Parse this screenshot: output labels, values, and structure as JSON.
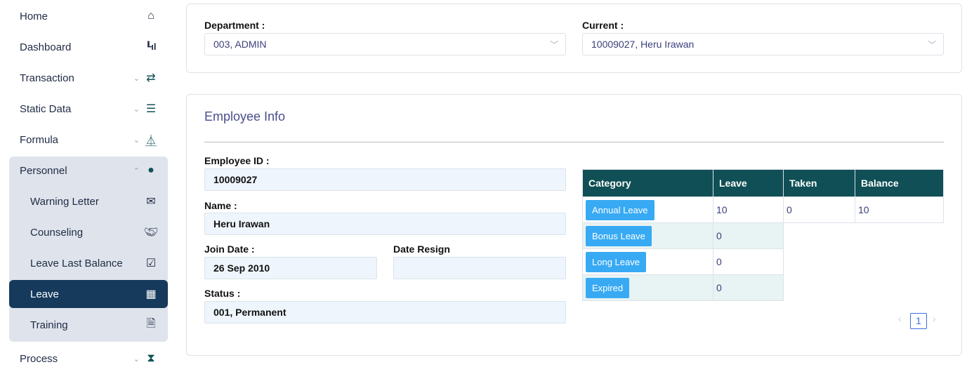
{
  "sidebar": {
    "items": [
      {
        "label": "Home",
        "icon": "home-icon"
      },
      {
        "label": "Dashboard",
        "icon": "bar-chart-icon"
      },
      {
        "label": "Transaction",
        "icon": "exchange-icon"
      },
      {
        "label": "Static Data",
        "icon": "database-icon"
      },
      {
        "label": "Formula",
        "icon": "flask-icon"
      },
      {
        "label": "Personnel",
        "icon": "user-icon"
      },
      {
        "label": "Warning Letter",
        "icon": "envelope-icon"
      },
      {
        "label": "Counseling",
        "icon": "handshake-icon"
      },
      {
        "label": "Leave Last Balance",
        "icon": "calendar-check-icon"
      },
      {
        "label": "Leave",
        "icon": "calendar-icon"
      },
      {
        "label": "Training",
        "icon": "file-text-icon"
      },
      {
        "label": "Process",
        "icon": "hourglass-icon"
      }
    ]
  },
  "filters": {
    "department_label": "Department :",
    "department_value": "003, ADMIN",
    "current_label": "Current :",
    "current_value": "10009027, Heru Irawan"
  },
  "employee": {
    "title": "Employee Info",
    "id_label": "Employee ID :",
    "id_value": "10009027",
    "name_label": "Name :",
    "name_value": "Heru Irawan",
    "join_label": "Join Date :",
    "join_value": "26 Sep 2010",
    "resign_label": "Date Resign",
    "resign_value": "",
    "status_label": "Status :",
    "status_value": "001, Permanent"
  },
  "leave_table": {
    "headers": [
      "Category",
      "Leave",
      "Taken",
      "Balance"
    ],
    "rows": [
      {
        "category": "Annual Leave",
        "leave": "10",
        "taken": "0",
        "balance": "10"
      },
      {
        "category": "Bonus Leave",
        "leave": "0"
      },
      {
        "category": "Long Leave",
        "leave": "0"
      },
      {
        "category": "Expired",
        "leave": "0"
      }
    ]
  },
  "pagination": {
    "current": "1",
    "prev": "‹",
    "next": "›"
  },
  "colors": {
    "header": "#0f4f55",
    "active": "#163a5c",
    "badge": "#38aaf4"
  }
}
